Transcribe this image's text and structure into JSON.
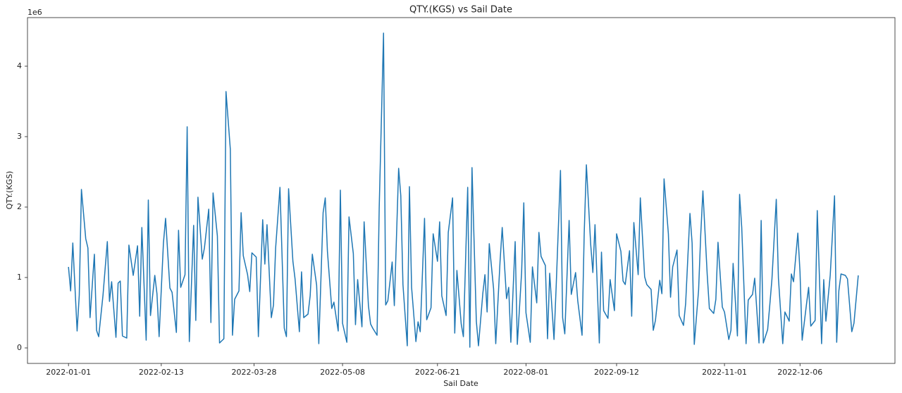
{
  "chart_data": {
    "type": "line",
    "title": "QTY.(KGS) vs Sail Date",
    "x_label": "Sail Date",
    "y_label": "QTY.(KGS)",
    "y_offset_label": "1e6",
    "color": "#1f77b4",
    "xlim": [
      "2021-12-13",
      "2023-01-19"
    ],
    "ylim": [
      -0.22,
      4.69
    ],
    "yticks": [
      0,
      1,
      2,
      3,
      4
    ],
    "xticks": [
      "2022-01-01",
      "2022-02-13",
      "2022-03-28",
      "2022-05-08",
      "2022-06-21",
      "2022-08-01",
      "2022-09-12",
      "2022-11-01",
      "2022-12-06"
    ],
    "x": [
      "2022-01-01",
      "2022-01-02",
      "2022-01-03",
      "2022-01-05",
      "2022-01-06",
      "2022-01-07",
      "2022-01-09",
      "2022-01-10",
      "2022-01-11",
      "2022-01-13",
      "2022-01-14",
      "2022-01-15",
      "2022-01-17",
      "2022-01-19",
      "2022-01-20",
      "2022-01-21",
      "2022-01-23",
      "2022-01-24",
      "2022-01-25",
      "2022-01-26",
      "2022-01-28",
      "2022-01-29",
      "2022-01-31",
      "2022-02-02",
      "2022-02-03",
      "2022-02-04",
      "2022-02-06",
      "2022-02-07",
      "2022-02-08",
      "2022-02-10",
      "2022-02-11",
      "2022-02-12",
      "2022-02-14",
      "2022-02-15",
      "2022-02-17",
      "2022-02-18",
      "2022-02-20",
      "2022-02-21",
      "2022-02-22",
      "2022-02-24",
      "2022-02-25",
      "2022-02-26",
      "2022-02-28",
      "2022-03-01",
      "2022-03-02",
      "2022-03-04",
      "2022-03-05",
      "2022-03-07",
      "2022-03-08",
      "2022-03-09",
      "2022-03-11",
      "2022-03-12",
      "2022-03-14",
      "2022-03-15",
      "2022-03-17",
      "2022-03-18",
      "2022-03-19",
      "2022-03-21",
      "2022-03-22",
      "2022-03-23",
      "2022-03-25",
      "2022-03-26",
      "2022-03-27",
      "2022-03-29",
      "2022-03-30",
      "2022-04-01",
      "2022-04-02",
      "2022-04-03",
      "2022-04-05",
      "2022-04-06",
      "2022-04-07",
      "2022-04-09",
      "2022-04-11",
      "2022-04-12",
      "2022-04-13",
      "2022-04-15",
      "2022-04-16",
      "2022-04-18",
      "2022-04-19",
      "2022-04-20",
      "2022-04-22",
      "2022-04-23",
      "2022-04-24",
      "2022-04-26",
      "2022-04-27",
      "2022-04-29",
      "2022-04-30",
      "2022-05-01",
      "2022-05-03",
      "2022-05-04",
      "2022-05-06",
      "2022-05-07",
      "2022-05-08",
      "2022-05-10",
      "2022-05-11",
      "2022-05-13",
      "2022-05-14",
      "2022-05-15",
      "2022-05-17",
      "2022-05-18",
      "2022-05-20",
      "2022-05-21",
      "2022-05-22",
      "2022-05-24",
      "2022-05-25",
      "2022-05-27",
      "2022-05-28",
      "2022-05-29",
      "2022-05-31",
      "2022-06-01",
      "2022-06-03",
      "2022-06-04",
      "2022-06-05",
      "2022-06-07",
      "2022-06-08",
      "2022-06-09",
      "2022-06-11",
      "2022-06-12",
      "2022-06-13",
      "2022-06-15",
      "2022-06-16",
      "2022-06-18",
      "2022-06-19",
      "2022-06-21",
      "2022-06-22",
      "2022-06-23",
      "2022-06-25",
      "2022-06-26",
      "2022-06-28",
      "2022-06-29",
      "2022-06-30",
      "2022-07-02",
      "2022-07-03",
      "2022-07-05",
      "2022-07-06",
      "2022-07-07",
      "2022-07-09",
      "2022-07-10",
      "2022-07-12",
      "2022-07-13",
      "2022-07-14",
      "2022-07-15",
      "2022-07-17",
      "2022-07-18",
      "2022-07-20",
      "2022-07-21",
      "2022-07-23",
      "2022-07-24",
      "2022-07-25",
      "2022-07-27",
      "2022-07-28",
      "2022-07-30",
      "2022-07-31",
      "2022-08-01",
      "2022-08-03",
      "2022-08-04",
      "2022-08-06",
      "2022-08-07",
      "2022-08-08",
      "2022-08-10",
      "2022-08-11",
      "2022-08-12",
      "2022-08-14",
      "2022-08-15",
      "2022-08-17",
      "2022-08-18",
      "2022-08-19",
      "2022-08-21",
      "2022-08-22",
      "2022-08-24",
      "2022-08-25",
      "2022-08-27",
      "2022-08-28",
      "2022-08-29",
      "2022-08-31",
      "2022-09-01",
      "2022-09-02",
      "2022-09-04",
      "2022-09-05",
      "2022-09-06",
      "2022-09-08",
      "2022-09-09",
      "2022-09-11",
      "2022-09-12",
      "2022-09-14",
      "2022-09-15",
      "2022-09-16",
      "2022-09-18",
      "2022-09-19",
      "2022-09-20",
      "2022-09-22",
      "2022-09-23",
      "2022-09-25",
      "2022-09-26",
      "2022-09-28",
      "2022-09-29",
      "2022-09-30",
      "2022-10-02",
      "2022-10-03",
      "2022-10-04",
      "2022-10-06",
      "2022-10-07",
      "2022-10-08",
      "2022-10-10",
      "2022-10-11",
      "2022-10-13",
      "2022-10-14",
      "2022-10-16",
      "2022-10-17",
      "2022-10-18",
      "2022-10-20",
      "2022-10-21",
      "2022-10-22",
      "2022-10-24",
      "2022-10-25",
      "2022-10-27",
      "2022-10-28",
      "2022-10-29",
      "2022-10-31",
      "2022-11-01",
      "2022-11-03",
      "2022-11-04",
      "2022-11-05",
      "2022-11-07",
      "2022-11-08",
      "2022-11-09",
      "2022-11-11",
      "2022-11-12",
      "2022-11-14",
      "2022-11-15",
      "2022-11-17",
      "2022-11-18",
      "2022-11-19",
      "2022-11-21",
      "2022-11-22",
      "2022-11-23",
      "2022-11-25",
      "2022-11-26",
      "2022-11-28",
      "2022-11-29",
      "2022-12-01",
      "2022-12-02",
      "2022-12-03",
      "2022-12-05",
      "2022-12-06",
      "2022-12-07",
      "2022-12-09",
      "2022-12-10",
      "2022-12-11",
      "2022-12-13",
      "2022-12-14",
      "2022-12-16",
      "2022-12-17",
      "2022-12-18",
      "2022-12-20",
      "2022-12-22",
      "2022-12-23",
      "2022-12-24",
      "2022-12-25",
      "2022-12-27",
      "2022-12-28",
      "2022-12-30",
      "2022-12-31",
      "2023-01-02"
    ],
    "values": [
      1.15,
      0.81,
      1.49,
      0.24,
      0.75,
      2.25,
      1.55,
      1.42,
      0.43,
      1.33,
      0.25,
      0.16,
      0.75,
      1.51,
      0.66,
      0.94,
      0.15,
      0.92,
      0.95,
      0.17,
      0.14,
      1.46,
      1.03,
      1.45,
      0.45,
      1.71,
      0.11,
      2.1,
      0.46,
      1.03,
      0.77,
      0.16,
      1.49,
      1.84,
      0.85,
      0.79,
      0.22,
      1.67,
      0.86,
      1.04,
      3.14,
      0.09,
      1.74,
      0.39,
      2.14,
      1.26,
      1.42,
      1.97,
      0.36,
      2.2,
      1.59,
      0.07,
      0.13,
      3.64,
      2.82,
      0.18,
      0.69,
      0.81,
      1.92,
      1.31,
      1.04,
      0.8,
      1.35,
      1.29,
      0.16,
      1.82,
      1.19,
      1.75,
      0.43,
      0.61,
      1.42,
      2.28,
      0.28,
      0.16,
      2.26,
      1.23,
      0.98,
      0.23,
      1.08,
      0.43,
      0.48,
      0.74,
      1.33,
      0.89,
      0.06,
      1.92,
      2.13,
      1.37,
      0.56,
      0.65,
      0.24,
      2.24,
      0.35,
      0.08,
      1.86,
      1.34,
      0.33,
      0.97,
      0.3,
      1.79,
      0.6,
      0.34,
      0.28,
      0.18,
      2.0,
      4.47,
      0.61,
      0.67,
      1.22,
      0.6,
      2.55,
      2.16,
      0.9,
      0.03,
      2.29,
      0.86,
      0.09,
      0.37,
      0.23,
      1.84,
      0.4,
      0.57,
      1.62,
      1.23,
      1.79,
      0.74,
      0.46,
      1.64,
      2.13,
      0.21,
      1.1,
      0.34,
      0.16,
      2.28,
      0.01,
      2.56,
      0.38,
      0.03,
      0.77,
      1.04,
      0.51,
      1.48,
      0.84,
      0.06,
      1.23,
      1.71,
      0.7,
      0.86,
      0.08,
      1.51,
      0.05,
      1.08,
      2.06,
      0.5,
      0.08,
      1.15,
      0.64,
      1.64,
      1.3,
      1.17,
      0.13,
      1.06,
      0.12,
      0.87,
      2.52,
      0.43,
      0.2,
      1.81,
      0.76,
      1.07,
      0.67,
      0.18,
      1.63,
      2.6,
      1.47,
      1.07,
      1.75,
      0.07,
      1.36,
      0.53,
      0.42,
      0.97,
      0.53,
      1.62,
      1.37,
      0.95,
      0.9,
      1.38,
      0.45,
      1.78,
      1.04,
      2.13,
      1.01,
      0.9,
      0.83,
      0.25,
      0.39,
      0.96,
      0.77,
      2.4,
      1.62,
      0.72,
      1.15,
      1.39,
      0.46,
      0.32,
      0.63,
      1.91,
      1.49,
      0.05,
      0.82,
      1.61,
      2.23,
      1.04,
      0.56,
      0.49,
      0.69,
      1.5,
      0.58,
      0.51,
      0.12,
      0.25,
      1.2,
      0.17,
      2.18,
      1.71,
      0.06,
      0.68,
      0.76,
      0.99,
      0.07,
      1.81,
      0.07,
      0.26,
      0.61,
      0.98,
      2.11,
      0.99,
      0.06,
      0.51,
      0.38,
      1.05,
      0.94,
      1.63,
      1.08,
      0.11,
      0.62,
      0.86,
      0.31,
      0.39,
      1.95,
      0.06,
      0.97,
      0.38,
      1.03,
      2.16,
      0.08,
      0.81,
      1.05,
      1.03,
      0.98,
      0.23,
      0.35,
      1.03
    ]
  }
}
